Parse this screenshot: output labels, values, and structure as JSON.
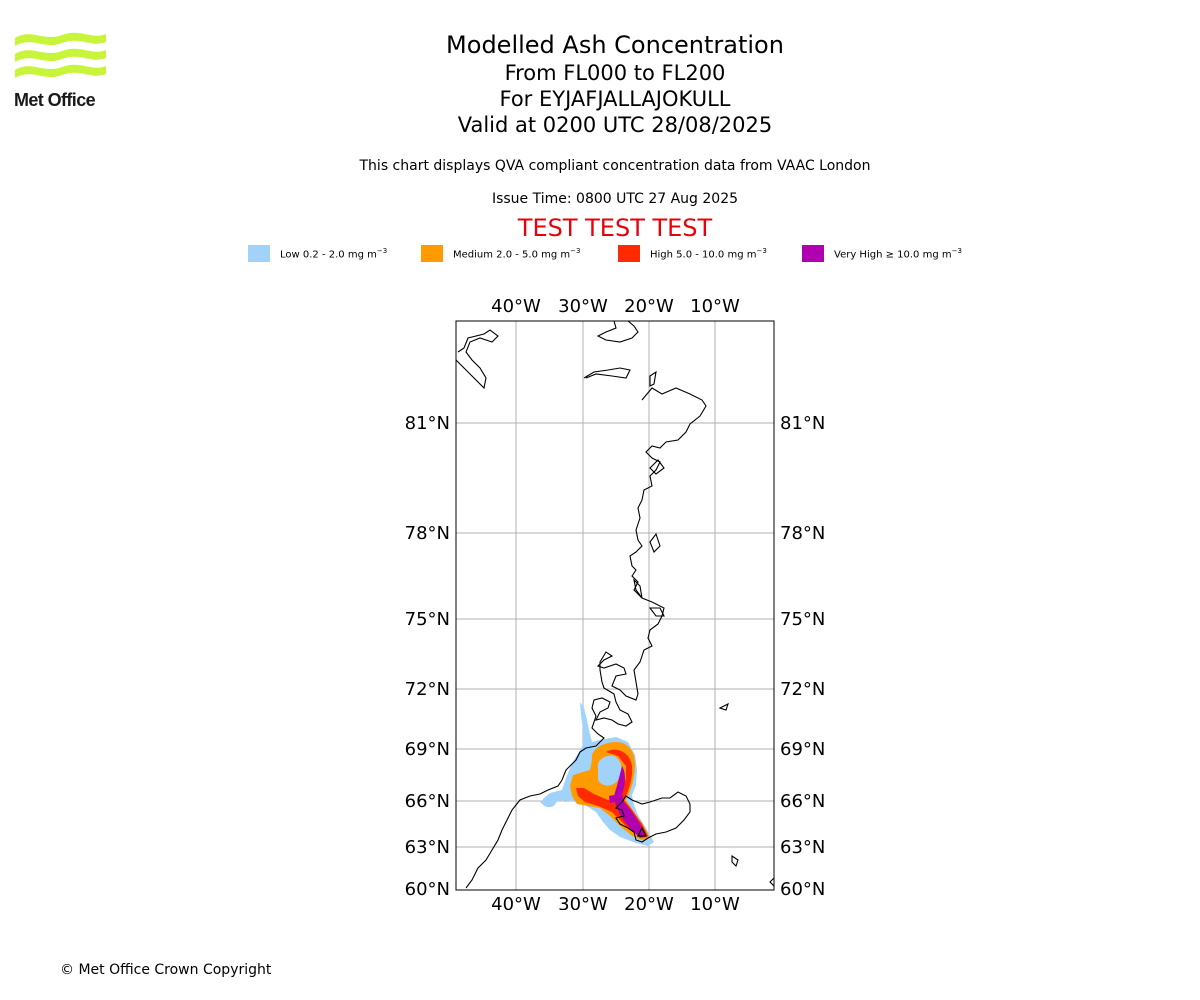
{
  "logo": {
    "text": "Met Office",
    "color": "#c8f53a"
  },
  "header": {
    "title": "Modelled Ash Concentration",
    "level_range": "From FL000 to FL200",
    "volcano": "For EYJAFJALLAJOKULL",
    "valid": "Valid at 0200 UTC 28/08/2025",
    "description": "This chart displays QVA compliant concentration data from VAAC London",
    "issue_time": "Issue Time: 0800 UTC 27 Aug 2025",
    "test_banner": "TEST TEST TEST",
    "test_color": "#e8000b"
  },
  "legend": [
    {
      "label": "Low 0.2 - 2.0 mg m",
      "exp": "−3",
      "color": "#a0d2fa"
    },
    {
      "label": "Medium 2.0 - 5.0 mg m",
      "exp": "−3",
      "color": "#ff9a00"
    },
    {
      "label": "High 5.0 - 10.0 mg m",
      "exp": "−3",
      "color": "#ff2a00"
    },
    {
      "label": "Very High  ≥  10.0 mg m",
      "exp": "−3",
      "color": "#b000b0"
    }
  ],
  "map": {
    "lon_ticks": [
      "40°W",
      "30°W",
      "20°W",
      "10°W"
    ],
    "lat_ticks": [
      "81°N",
      "78°N",
      "75°N",
      "72°N",
      "69°N",
      "66°N",
      "63°N",
      "60°N"
    ]
  },
  "footer": {
    "copyright": "© Met Office Crown Copyright"
  }
}
